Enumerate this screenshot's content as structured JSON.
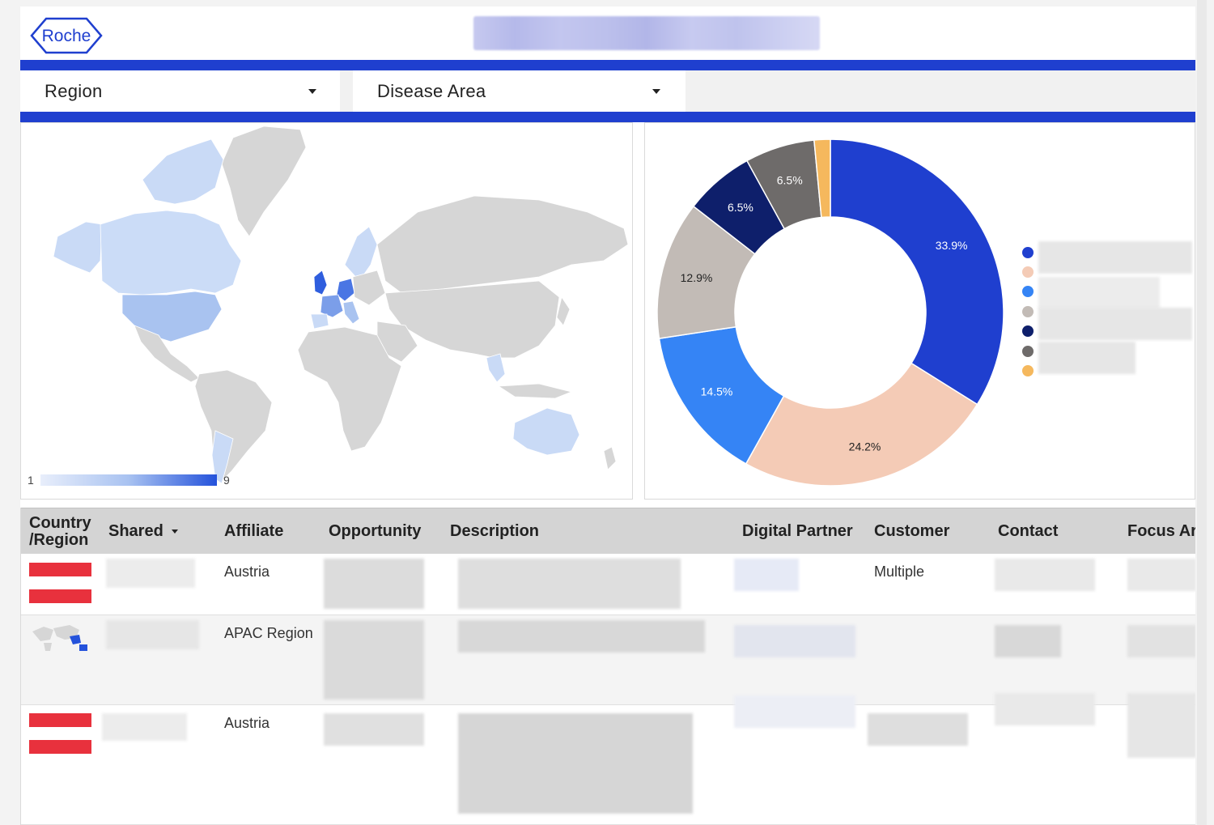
{
  "header": {
    "logo_text": "Roche"
  },
  "filters": {
    "region_label": "Region",
    "disease_area_label": "Disease Area"
  },
  "map": {
    "legend_min": "1",
    "legend_max": "9",
    "colors": {
      "low": "#e8eefb",
      "mid": "#a8c2f1",
      "high": "#2452db",
      "no_data": "#d6d6d6"
    }
  },
  "chart_data": {
    "type": "pie",
    "donut": true,
    "slices": [
      {
        "label": "33.9%",
        "value": 33.9,
        "color": "#1f3fcf"
      },
      {
        "label": "24.2%",
        "value": 24.2,
        "color": "#f4cbb6"
      },
      {
        "label": "14.5%",
        "value": 14.5,
        "color": "#3584f5"
      },
      {
        "label": "12.9%",
        "value": 12.9,
        "color": "#c2bbb6"
      },
      {
        "label": "6.5%",
        "value": 6.5,
        "color": "#0e1f6b"
      },
      {
        "label": "6.5%",
        "value": 6.5,
        "color": "#6e6b6a"
      },
      {
        "label": "",
        "value": 1.5,
        "color": "#f5b85d"
      }
    ],
    "legend_placement": "right"
  },
  "table": {
    "columns": [
      "Country /Region",
      "Shared",
      "Affiliate",
      "Opportunity",
      "Description",
      "Digital Partner",
      "Customer",
      "Contact",
      "Focus Area"
    ],
    "rows": [
      {
        "affiliate": "Austria",
        "customer": "Multiple"
      },
      {
        "affiliate": "APAC Region",
        "customer": ""
      },
      {
        "affiliate": "Austria",
        "customer": ""
      }
    ]
  }
}
